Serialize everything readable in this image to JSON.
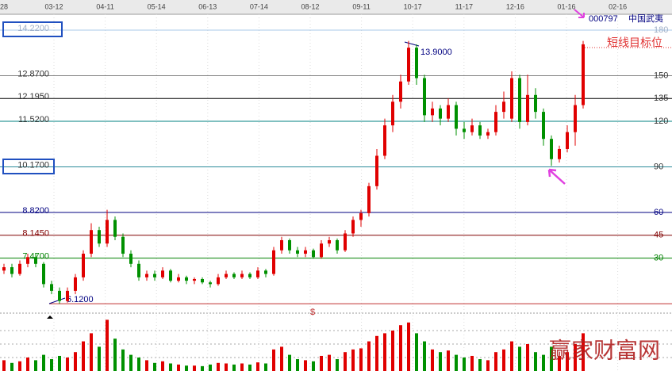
{
  "chart_data": {
    "type": "candlestick",
    "symbol": "000797",
    "name": "中国武夷",
    "date_labels": [
      "28",
      "03-12",
      "04-11",
      "05-14",
      "06-13",
      "07-14",
      "08-12",
      "09-11",
      "10-17",
      "11-17",
      "12-16",
      "01-16",
      "02-16"
    ],
    "ylim": [
      5.84,
      14.69
    ],
    "volume_ylim": [
      0,
      100
    ],
    "up_color": "#e00000",
    "down_color": "#009000",
    "levels": [
      {
        "price": {
          "value": 14.22,
          "label": "14.2200"
        },
        "angle": 180,
        "color": "#a8c8e8"
      },
      {
        "price": {
          "value": 12.87,
          "label": "12.8700"
        },
        "angle": 150,
        "color": "#808080"
      },
      {
        "price": {
          "value": 12.195,
          "label": "12.1950"
        },
        "angle": 135,
        "color": "#000000"
      },
      {
        "price": {
          "value": 11.52,
          "label": "11.5200"
        },
        "angle": 120,
        "color": "#008080"
      },
      {
        "price": {
          "value": 10.17,
          "label": "10.1700"
        },
        "angle": 90,
        "color": "#2a8a9a"
      },
      {
        "price": {
          "value": 8.82,
          "label": "8.8200"
        },
        "angle": 60,
        "color": "#000080"
      },
      {
        "price": {
          "value": 8.145,
          "label": "8.1450"
        },
        "angle": 45,
        "color": "#800000"
      },
      {
        "price": {
          "value": 7.47,
          "label": "7.4700"
        },
        "angle": 30,
        "color": "#008000"
      },
      {
        "price": {
          "value": 6.12,
          "label": "6.1200"
        },
        "color": "#c03030"
      }
    ],
    "high_label": "13.9000",
    "low_label": "6.1200",
    "target_label": "短线目标位",
    "marker": "$",
    "watermark": "赢家财富网",
    "open": [
      7.1,
      7.2,
      7.0,
      7.3,
      7.5,
      7.3,
      6.7,
      6.5,
      6.2,
      6.5,
      6.9,
      7.6,
      8.3,
      7.9,
      8.6,
      8.1,
      7.6,
      7.3,
      6.9,
      7.0,
      6.9,
      7.1,
      6.8,
      6.9,
      6.8,
      6.85,
      6.75,
      6.7,
      6.9,
      7.0,
      6.9,
      7.0,
      6.9,
      7.1,
      7.0,
      7.7,
      8.0,
      7.7,
      7.6,
      7.7,
      7.5,
      7.9,
      8.0,
      7.7,
      8.2,
      8.6,
      8.8,
      9.6,
      10.5,
      11.4,
      12.1,
      12.7,
      13.7,
      12.8,
      11.7,
      11.9,
      11.6,
      12.0,
      11.3,
      11.2,
      11.4,
      11.1,
      11.2,
      11.8,
      11.6,
      12.8,
      11.5,
      12.3,
      11.8,
      11.0,
      10.4,
      10.7,
      11.2,
      12.0
    ],
    "close": [
      7.2,
      7.0,
      7.3,
      7.5,
      7.3,
      6.7,
      6.5,
      6.2,
      6.5,
      6.9,
      7.6,
      8.3,
      7.9,
      8.6,
      8.1,
      7.6,
      7.3,
      6.9,
      7.0,
      6.9,
      7.1,
      6.8,
      6.9,
      6.8,
      6.85,
      6.75,
      6.7,
      6.9,
      7.0,
      6.9,
      7.0,
      6.9,
      7.1,
      7.0,
      7.7,
      8.0,
      7.7,
      7.6,
      7.7,
      7.5,
      7.9,
      8.0,
      7.7,
      8.2,
      8.6,
      8.8,
      9.6,
      10.5,
      11.4,
      12.1,
      12.7,
      13.7,
      12.8,
      11.7,
      11.9,
      11.6,
      12.0,
      11.3,
      11.2,
      11.4,
      11.1,
      11.2,
      11.8,
      12.1,
      12.8,
      11.5,
      12.3,
      11.8,
      11.0,
      10.4,
      10.7,
      11.2,
      12.0,
      13.8
    ],
    "high": [
      7.3,
      7.3,
      7.4,
      7.6,
      7.6,
      7.35,
      6.8,
      6.6,
      6.6,
      7.0,
      7.7,
      8.5,
      8.4,
      8.9,
      8.7,
      8.2,
      7.7,
      7.4,
      7.1,
      7.1,
      7.2,
      7.15,
      7.0,
      6.95,
      6.9,
      6.9,
      6.8,
      7.0,
      7.1,
      7.05,
      7.1,
      7.05,
      7.2,
      7.15,
      7.8,
      8.1,
      8.05,
      7.8,
      7.8,
      7.75,
      8.0,
      8.1,
      8.05,
      8.3,
      8.7,
      8.9,
      9.7,
      10.7,
      11.6,
      12.3,
      12.9,
      13.9,
      13.8,
      12.9,
      12.1,
      12.0,
      12.2,
      12.1,
      11.5,
      11.6,
      11.5,
      11.3,
      12.0,
      12.4,
      13.0,
      12.9,
      12.9,
      12.5,
      11.9,
      11.1,
      10.8,
      11.4,
      12.3,
      13.9
    ],
    "low": [
      7.0,
      6.9,
      6.95,
      7.2,
      7.2,
      6.6,
      6.4,
      6.12,
      6.15,
      6.4,
      6.8,
      7.5,
      7.8,
      7.8,
      8.0,
      7.5,
      7.2,
      6.8,
      6.8,
      6.8,
      6.85,
      6.75,
      6.75,
      6.7,
      6.7,
      6.7,
      6.6,
      6.65,
      6.85,
      6.85,
      6.85,
      6.85,
      6.85,
      6.9,
      6.95,
      7.6,
      7.6,
      7.5,
      7.5,
      7.45,
      7.45,
      7.8,
      7.6,
      7.65,
      8.1,
      8.4,
      8.7,
      9.5,
      10.4,
      11.2,
      11.9,
      12.6,
      12.6,
      11.5,
      11.5,
      11.4,
      11.5,
      11.1,
      11.0,
      11.1,
      11.0,
      11.0,
      11.1,
      11.6,
      11.5,
      11.3,
      11.4,
      11.6,
      10.8,
      10.2,
      10.3,
      10.6,
      10.8,
      11.9
    ],
    "volume": [
      20,
      15,
      18,
      25,
      20,
      30,
      22,
      28,
      25,
      35,
      55,
      70,
      45,
      95,
      60,
      40,
      30,
      25,
      20,
      15,
      18,
      14,
      12,
      10,
      10,
      9,
      12,
      15,
      14,
      12,
      14,
      12,
      16,
      14,
      40,
      45,
      30,
      22,
      20,
      18,
      28,
      30,
      22,
      35,
      40,
      42,
      55,
      65,
      70,
      75,
      85,
      90,
      70,
      55,
      40,
      35,
      38,
      30,
      25,
      28,
      22,
      20,
      35,
      40,
      55,
      45,
      50,
      35,
      30,
      45,
      28,
      35,
      50,
      70
    ]
  }
}
